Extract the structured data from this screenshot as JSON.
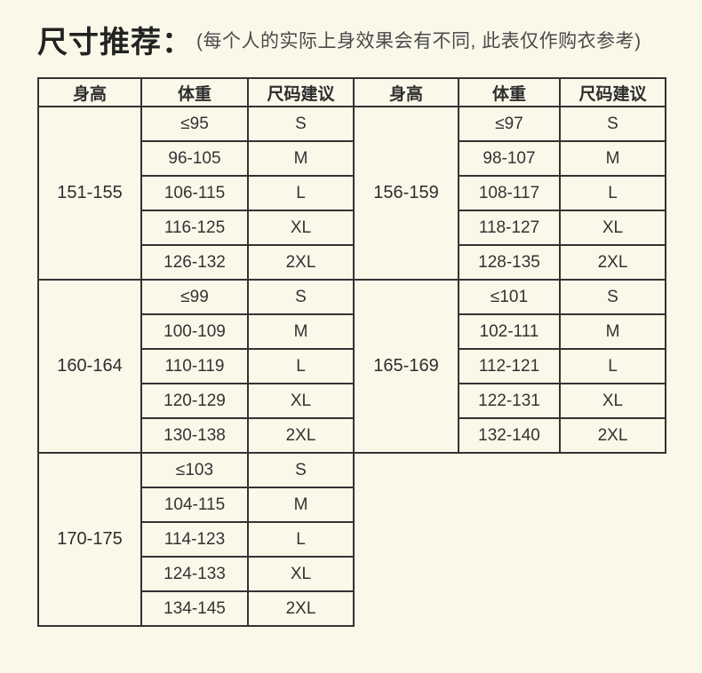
{
  "colors": {
    "page_background": "#faf8e9",
    "table_border": "#333333",
    "title_text": "#222222",
    "subtitle_text": "#4a4a4a",
    "cell_text": "#333333"
  },
  "header": {
    "title": "尺寸推荐：",
    "subtitle": "(每个人的实际上身效果会有不同, 此表仅作购衣参考)"
  },
  "table": {
    "headers": [
      "身高",
      "体重",
      "尺码建议",
      "身高",
      "体重",
      "尺码建议"
    ],
    "left_blocks": [
      {
        "height": "151-155",
        "rows": [
          [
            "≤95",
            "S"
          ],
          [
            "96-105",
            "M"
          ],
          [
            "106-115",
            "L"
          ],
          [
            "116-125",
            "XL"
          ],
          [
            "126-132",
            "2XL"
          ]
        ]
      },
      {
        "height": "160-164",
        "rows": [
          [
            "≤99",
            "S"
          ],
          [
            "100-109",
            "M"
          ],
          [
            "110-119",
            "L"
          ],
          [
            "120-129",
            "XL"
          ],
          [
            "130-138",
            "2XL"
          ]
        ]
      },
      {
        "height": "170-175",
        "rows": [
          [
            "≤103",
            "S"
          ],
          [
            "104-115",
            "M"
          ],
          [
            "114-123",
            "L"
          ],
          [
            "124-133",
            "XL"
          ],
          [
            "134-145",
            "2XL"
          ]
        ]
      }
    ],
    "right_blocks": [
      {
        "height": "156-159",
        "rows": [
          [
            "≤97",
            "S"
          ],
          [
            "98-107",
            "M"
          ],
          [
            "108-117",
            "L"
          ],
          [
            "118-127",
            "XL"
          ],
          [
            "128-135",
            "2XL"
          ]
        ]
      },
      {
        "height": "165-169",
        "rows": [
          [
            "≤101",
            "S"
          ],
          [
            "102-111",
            "M"
          ],
          [
            "112-121",
            "L"
          ],
          [
            "122-131",
            "XL"
          ],
          [
            "132-140",
            "2XL"
          ]
        ]
      }
    ]
  }
}
